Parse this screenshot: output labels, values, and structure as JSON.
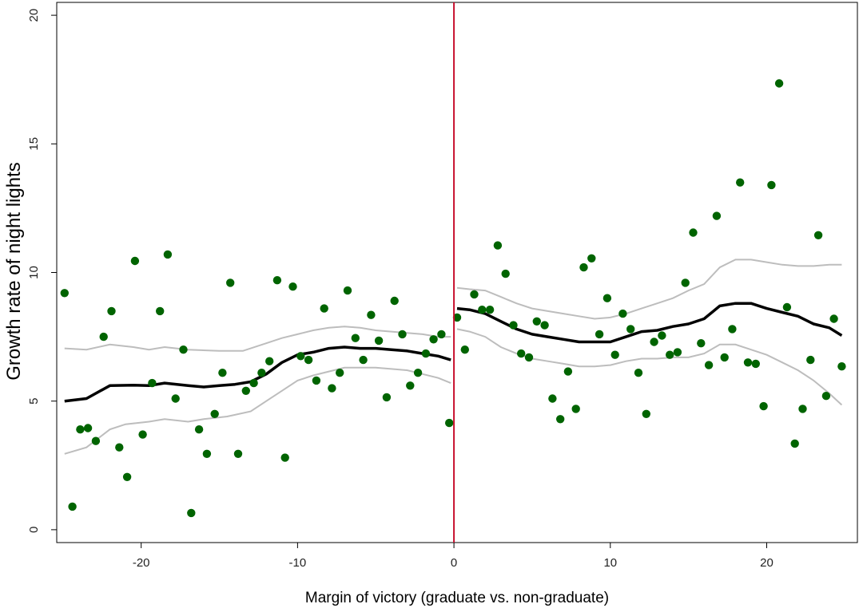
{
  "chart_data": {
    "type": "scatter",
    "xlabel": "Margin of victory (graduate vs. non-graduate)",
    "ylabel": "Growth rate of night lights",
    "xlim": [
      -25.4,
      25.8
    ],
    "ylim": [
      -0.5,
      20.5
    ],
    "xticks": [
      -20,
      -10,
      0,
      10,
      20
    ],
    "yticks": [
      0,
      5,
      10,
      15,
      20
    ],
    "cutoff": 0,
    "grid": false,
    "legend": "none",
    "colors": {
      "points": "#006400",
      "fit": "#000000",
      "ci": "#bdbdbd",
      "cutoff_line": "#c8102e"
    },
    "points": [
      [
        -24.9,
        9.2
      ],
      [
        -24.4,
        0.9
      ],
      [
        -23.9,
        3.9
      ],
      [
        -23.4,
        3.95
      ],
      [
        -22.9,
        3.45
      ],
      [
        -22.4,
        7.5
      ],
      [
        -21.9,
        8.5
      ],
      [
        -21.4,
        3.2
      ],
      [
        -20.9,
        2.05
      ],
      [
        -20.4,
        10.45
      ],
      [
        -19.9,
        3.7
      ],
      [
        -19.3,
        5.7
      ],
      [
        -18.8,
        8.5
      ],
      [
        -18.3,
        10.7
      ],
      [
        -17.8,
        5.1
      ],
      [
        -17.3,
        7.0
      ],
      [
        -16.8,
        0.65
      ],
      [
        -16.3,
        3.9
      ],
      [
        -15.8,
        2.95
      ],
      [
        -15.3,
        4.5
      ],
      [
        -14.8,
        6.1
      ],
      [
        -14.3,
        9.6
      ],
      [
        -13.8,
        2.95
      ],
      [
        -13.3,
        5.4
      ],
      [
        -12.8,
        5.7
      ],
      [
        -12.3,
        6.1
      ],
      [
        -11.8,
        6.55
      ],
      [
        -11.3,
        9.7
      ],
      [
        -10.8,
        2.8
      ],
      [
        -10.3,
        9.45
      ],
      [
        -9.8,
        6.75
      ],
      [
        -9.3,
        6.6
      ],
      [
        -8.8,
        5.8
      ],
      [
        -8.3,
        8.6
      ],
      [
        -7.8,
        5.5
      ],
      [
        -7.3,
        6.1
      ],
      [
        -6.8,
        9.3
      ],
      [
        -6.3,
        7.45
      ],
      [
        -5.8,
        6.6
      ],
      [
        -5.3,
        8.35
      ],
      [
        -4.8,
        7.35
      ],
      [
        -4.3,
        5.15
      ],
      [
        -3.8,
        8.9
      ],
      [
        -3.3,
        7.6
      ],
      [
        -2.8,
        5.6
      ],
      [
        -2.3,
        6.1
      ],
      [
        -1.8,
        6.85
      ],
      [
        -1.3,
        7.4
      ],
      [
        -0.8,
        7.6
      ],
      [
        -0.3,
        4.15
      ],
      [
        0.2,
        8.25
      ],
      [
        0.7,
        7.0
      ],
      [
        1.3,
        9.15
      ],
      [
        1.8,
        8.55
      ],
      [
        2.3,
        8.55
      ],
      [
        2.8,
        11.05
      ],
      [
        3.3,
        9.95
      ],
      [
        3.8,
        7.95
      ],
      [
        4.3,
        6.85
      ],
      [
        4.8,
        6.7
      ],
      [
        5.3,
        8.1
      ],
      [
        5.8,
        7.95
      ],
      [
        6.3,
        5.1
      ],
      [
        6.8,
        4.3
      ],
      [
        7.3,
        6.15
      ],
      [
        7.8,
        4.7
      ],
      [
        8.3,
        10.2
      ],
      [
        8.8,
        10.55
      ],
      [
        9.3,
        7.6
      ],
      [
        9.8,
        9.0
      ],
      [
        10.3,
        6.8
      ],
      [
        10.8,
        8.4
      ],
      [
        11.3,
        7.8
      ],
      [
        11.8,
        6.1
      ],
      [
        12.3,
        4.5
      ],
      [
        12.8,
        7.3
      ],
      [
        13.3,
        7.55
      ],
      [
        13.8,
        6.8
      ],
      [
        14.3,
        6.9
      ],
      [
        14.8,
        9.6
      ],
      [
        15.3,
        11.55
      ],
      [
        15.8,
        7.25
      ],
      [
        16.3,
        6.4
      ],
      [
        16.8,
        12.2
      ],
      [
        17.3,
        6.7
      ],
      [
        17.8,
        7.8
      ],
      [
        18.3,
        13.5
      ],
      [
        18.8,
        6.5
      ],
      [
        19.3,
        6.45
      ],
      [
        19.8,
        4.8
      ],
      [
        20.3,
        13.4
      ],
      [
        20.8,
        17.35
      ],
      [
        21.3,
        8.65
      ],
      [
        21.8,
        3.35
      ],
      [
        22.3,
        4.7
      ],
      [
        22.8,
        6.6
      ],
      [
        23.3,
        11.45
      ],
      [
        23.8,
        5.2
      ],
      [
        24.3,
        8.2
      ],
      [
        24.8,
        6.35
      ]
    ],
    "fit_left": [
      [
        -24.9,
        5.0
      ],
      [
        -23.5,
        5.1
      ],
      [
        -22,
        5.6
      ],
      [
        -20.5,
        5.62
      ],
      [
        -19.5,
        5.6
      ],
      [
        -18.5,
        5.7
      ],
      [
        -17,
        5.6
      ],
      [
        -16,
        5.55
      ],
      [
        -15,
        5.6
      ],
      [
        -14,
        5.65
      ],
      [
        -13,
        5.75
      ],
      [
        -12,
        6.05
      ],
      [
        -11,
        6.5
      ],
      [
        -10,
        6.8
      ],
      [
        -9,
        6.9
      ],
      [
        -8,
        7.05
      ],
      [
        -7,
        7.1
      ],
      [
        -6,
        7.05
      ],
      [
        -5,
        7.05
      ],
      [
        -4,
        7.0
      ],
      [
        -3,
        6.95
      ],
      [
        -2,
        6.85
      ],
      [
        -1,
        6.75
      ],
      [
        -0.2,
        6.6
      ]
    ],
    "ci_upper_left": [
      [
        -24.9,
        7.05
      ],
      [
        -23.5,
        7.0
      ],
      [
        -22,
        7.2
      ],
      [
        -20.5,
        7.1
      ],
      [
        -19.5,
        7.0
      ],
      [
        -18.5,
        7.1
      ],
      [
        -17,
        7.0
      ],
      [
        -15,
        6.95
      ],
      [
        -13.5,
        6.95
      ],
      [
        -12,
        7.25
      ],
      [
        -11,
        7.45
      ],
      [
        -10,
        7.6
      ],
      [
        -9,
        7.75
      ],
      [
        -8,
        7.85
      ],
      [
        -7,
        7.9
      ],
      [
        -6,
        7.85
      ],
      [
        -5,
        7.75
      ],
      [
        -4,
        7.7
      ],
      [
        -3,
        7.65
      ],
      [
        -2,
        7.6
      ],
      [
        -1,
        7.5
      ],
      [
        -0.2,
        7.5
      ]
    ],
    "ci_lower_left": [
      [
        -24.9,
        2.95
      ],
      [
        -23.5,
        3.2
      ],
      [
        -22,
        3.9
      ],
      [
        -21,
        4.1
      ],
      [
        -19.5,
        4.2
      ],
      [
        -18.5,
        4.3
      ],
      [
        -17,
        4.2
      ],
      [
        -16,
        4.3
      ],
      [
        -14.5,
        4.4
      ],
      [
        -13,
        4.6
      ],
      [
        -12,
        5.0
      ],
      [
        -11,
        5.4
      ],
      [
        -10,
        5.8
      ],
      [
        -9,
        6.0
      ],
      [
        -8,
        6.15
      ],
      [
        -7,
        6.3
      ],
      [
        -6,
        6.3
      ],
      [
        -5,
        6.3
      ],
      [
        -4,
        6.25
      ],
      [
        -3,
        6.2
      ],
      [
        -2,
        6.05
      ],
      [
        -1,
        5.9
      ],
      [
        -0.2,
        5.7
      ]
    ],
    "fit_right": [
      [
        0.2,
        8.6
      ],
      [
        1,
        8.55
      ],
      [
        2,
        8.4
      ],
      [
        3,
        8.1
      ],
      [
        4,
        7.8
      ],
      [
        5,
        7.6
      ],
      [
        6,
        7.5
      ],
      [
        7,
        7.4
      ],
      [
        8,
        7.3
      ],
      [
        9,
        7.3
      ],
      [
        10,
        7.3
      ],
      [
        11,
        7.5
      ],
      [
        12,
        7.7
      ],
      [
        13,
        7.75
      ],
      [
        14,
        7.9
      ],
      [
        15,
        8.0
      ],
      [
        16,
        8.2
      ],
      [
        17,
        8.7
      ],
      [
        18,
        8.8
      ],
      [
        19,
        8.8
      ],
      [
        20,
        8.6
      ],
      [
        21,
        8.45
      ],
      [
        22,
        8.3
      ],
      [
        23,
        8.0
      ],
      [
        24,
        7.85
      ],
      [
        24.8,
        7.55
      ]
    ],
    "ci_upper_right": [
      [
        0.2,
        9.4
      ],
      [
        1,
        9.35
      ],
      [
        2,
        9.3
      ],
      [
        3,
        9.05
      ],
      [
        4,
        8.8
      ],
      [
        5,
        8.6
      ],
      [
        6,
        8.5
      ],
      [
        7,
        8.4
      ],
      [
        8,
        8.3
      ],
      [
        9,
        8.2
      ],
      [
        10,
        8.25
      ],
      [
        11,
        8.4
      ],
      [
        12,
        8.6
      ],
      [
        13,
        8.8
      ],
      [
        14,
        9.0
      ],
      [
        15,
        9.3
      ],
      [
        16,
        9.55
      ],
      [
        17,
        10.2
      ],
      [
        18,
        10.5
      ],
      [
        19,
        10.5
      ],
      [
        20,
        10.4
      ],
      [
        21,
        10.3
      ],
      [
        22,
        10.25
      ],
      [
        23,
        10.25
      ],
      [
        24,
        10.3
      ],
      [
        24.8,
        10.3
      ]
    ],
    "ci_lower_right": [
      [
        0.2,
        7.8
      ],
      [
        1,
        7.7
      ],
      [
        2,
        7.5
      ],
      [
        3,
        7.1
      ],
      [
        4,
        6.85
      ],
      [
        5,
        6.65
      ],
      [
        6,
        6.55
      ],
      [
        7,
        6.45
      ],
      [
        8,
        6.35
      ],
      [
        9,
        6.35
      ],
      [
        10,
        6.4
      ],
      [
        11,
        6.55
      ],
      [
        12,
        6.65
      ],
      [
        13,
        6.65
      ],
      [
        14,
        6.7
      ],
      [
        15,
        6.7
      ],
      [
        16,
        6.85
      ],
      [
        17,
        7.2
      ],
      [
        18,
        7.2
      ],
      [
        19,
        7.0
      ],
      [
        20,
        6.8
      ],
      [
        21,
        6.5
      ],
      [
        22,
        6.2
      ],
      [
        23,
        5.8
      ],
      [
        24,
        5.3
      ],
      [
        24.8,
        4.85
      ]
    ]
  }
}
